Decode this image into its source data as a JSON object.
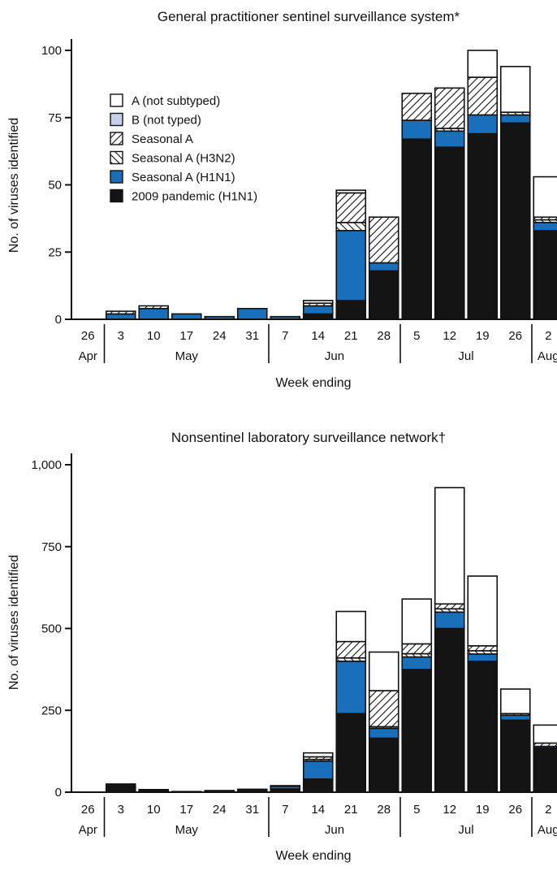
{
  "colors": {
    "a_not_subtyped": "#ffffff",
    "b_not_typed": "#c8cfea",
    "seasonal_a_hatch": "#ffffff",
    "seasonal_a_h3n2_hatch": "#ffffff",
    "seasonal_a_h1n1": "#1a6fba",
    "pandemic_h1n1": "#141414",
    "axis": "#111111"
  },
  "chart_data": [
    {
      "type": "bar",
      "stacked": true,
      "title": "General practitioner sentinel surveillance system*",
      "xlabel": "Week ending",
      "ylabel": "No. of viruses identified",
      "ylim": [
        0,
        100
      ],
      "yticks": [
        0,
        25,
        50,
        75,
        100
      ],
      "ytick_labels": [
        "0",
        "25",
        "50",
        "75",
        "100"
      ],
      "categories": [
        "26",
        "3",
        "10",
        "17",
        "24",
        "31",
        "7",
        "14",
        "21",
        "28",
        "5",
        "12",
        "19",
        "26",
        "2"
      ],
      "month_labels": [
        "Apr",
        "May",
        "Jun",
        "Jul",
        "Aug"
      ],
      "legend_placement": "top-left",
      "series": [
        {
          "name": "2009 pandemic (H1N1)",
          "key": "pandemic_h1n1",
          "pattern": "solid",
          "values": [
            0,
            0,
            0,
            0,
            0,
            0,
            0,
            2,
            7,
            18,
            67,
            64,
            69,
            73,
            33
          ]
        },
        {
          "name": "Seasonal A (H1N1)",
          "key": "seasonal_a_h1n1",
          "pattern": "solid",
          "values": [
            0,
            2,
            4,
            2,
            1,
            4,
            1,
            3,
            26,
            3,
            7,
            6,
            7,
            3,
            3
          ]
        },
        {
          "name": "B (not typed)",
          "key": "b_not_typed",
          "pattern": "solid",
          "values": [
            0,
            0,
            0,
            0,
            0,
            0,
            0,
            0,
            0,
            0,
            0,
            0,
            0,
            0,
            0
          ]
        },
        {
          "name": "Seasonal A (H3N2)",
          "key": "seasonal_a_h3n2_hatch",
          "pattern": "back-hatch",
          "values": [
            0,
            0,
            0,
            0,
            0,
            0,
            0,
            0,
            3,
            0,
            0,
            1,
            0,
            1,
            1
          ]
        },
        {
          "name": "Seasonal A",
          "key": "seasonal_a_hatch",
          "pattern": "forward-hatch",
          "values": [
            0,
            1,
            1,
            0,
            0,
            0,
            0,
            1,
            11,
            17,
            10,
            15,
            14,
            0,
            1
          ]
        },
        {
          "name": "A (not subtyped)",
          "key": "a_not_subtyped",
          "pattern": "solid",
          "values": [
            0,
            0,
            0,
            0,
            0,
            0,
            0,
            1,
            1,
            0,
            0,
            0,
            10,
            17,
            15
          ]
        }
      ],
      "legend_order": [
        "A (not subtyped)",
        "B (not typed)",
        "Seasonal A",
        "Seasonal A (H3N2)",
        "Seasonal A (H1N1)",
        "2009 pandemic (H1N1)"
      ]
    },
    {
      "type": "bar",
      "stacked": true,
      "title": "Nonsentinel laboratory surveillance network†",
      "xlabel": "Week ending",
      "ylabel": "No. of viruses identified",
      "ylim": [
        0,
        1000
      ],
      "yticks": [
        0,
        250,
        500,
        750,
        1000
      ],
      "ytick_labels": [
        "0",
        "250",
        "500",
        "750",
        "1,000"
      ],
      "categories": [
        "26",
        "3",
        "10",
        "17",
        "24",
        "31",
        "7",
        "14",
        "21",
        "28",
        "5",
        "12",
        "19",
        "26",
        "2"
      ],
      "month_labels": [
        "Apr",
        "May",
        "Jun",
        "Jul",
        "Aug"
      ],
      "series": [
        {
          "name": "2009 pandemic (H1N1)",
          "key": "pandemic_h1n1",
          "pattern": "solid",
          "values": [
            0,
            25,
            8,
            2,
            5,
            9,
            10,
            40,
            240,
            165,
            375,
            500,
            400,
            220,
            135
          ]
        },
        {
          "name": "Seasonal A (H1N1)",
          "key": "seasonal_a_h1n1",
          "pattern": "solid",
          "values": [
            0,
            0,
            0,
            0,
            0,
            0,
            8,
            55,
            160,
            30,
            38,
            50,
            22,
            15,
            5
          ]
        },
        {
          "name": "B (not typed)",
          "key": "b_not_typed",
          "pattern": "solid",
          "values": [
            0,
            0,
            0,
            0,
            0,
            0,
            0,
            0,
            0,
            0,
            0,
            0,
            0,
            0,
            0
          ]
        },
        {
          "name": "Seasonal A (H3N2)",
          "key": "seasonal_a_h3n2_hatch",
          "pattern": "back-hatch",
          "values": [
            0,
            0,
            0,
            0,
            0,
            0,
            0,
            5,
            10,
            5,
            10,
            10,
            10,
            0,
            0
          ]
        },
        {
          "name": "Seasonal A",
          "key": "seasonal_a_hatch",
          "pattern": "forward-hatch",
          "values": [
            0,
            0,
            0,
            0,
            0,
            0,
            0,
            8,
            50,
            110,
            30,
            15,
            15,
            5,
            10
          ]
        },
        {
          "name": "A (not subtyped)",
          "key": "a_not_subtyped",
          "pattern": "solid",
          "values": [
            0,
            0,
            0,
            0,
            0,
            0,
            2,
            12,
            92,
            118,
            137,
            355,
            213,
            75,
            55
          ]
        }
      ]
    }
  ]
}
